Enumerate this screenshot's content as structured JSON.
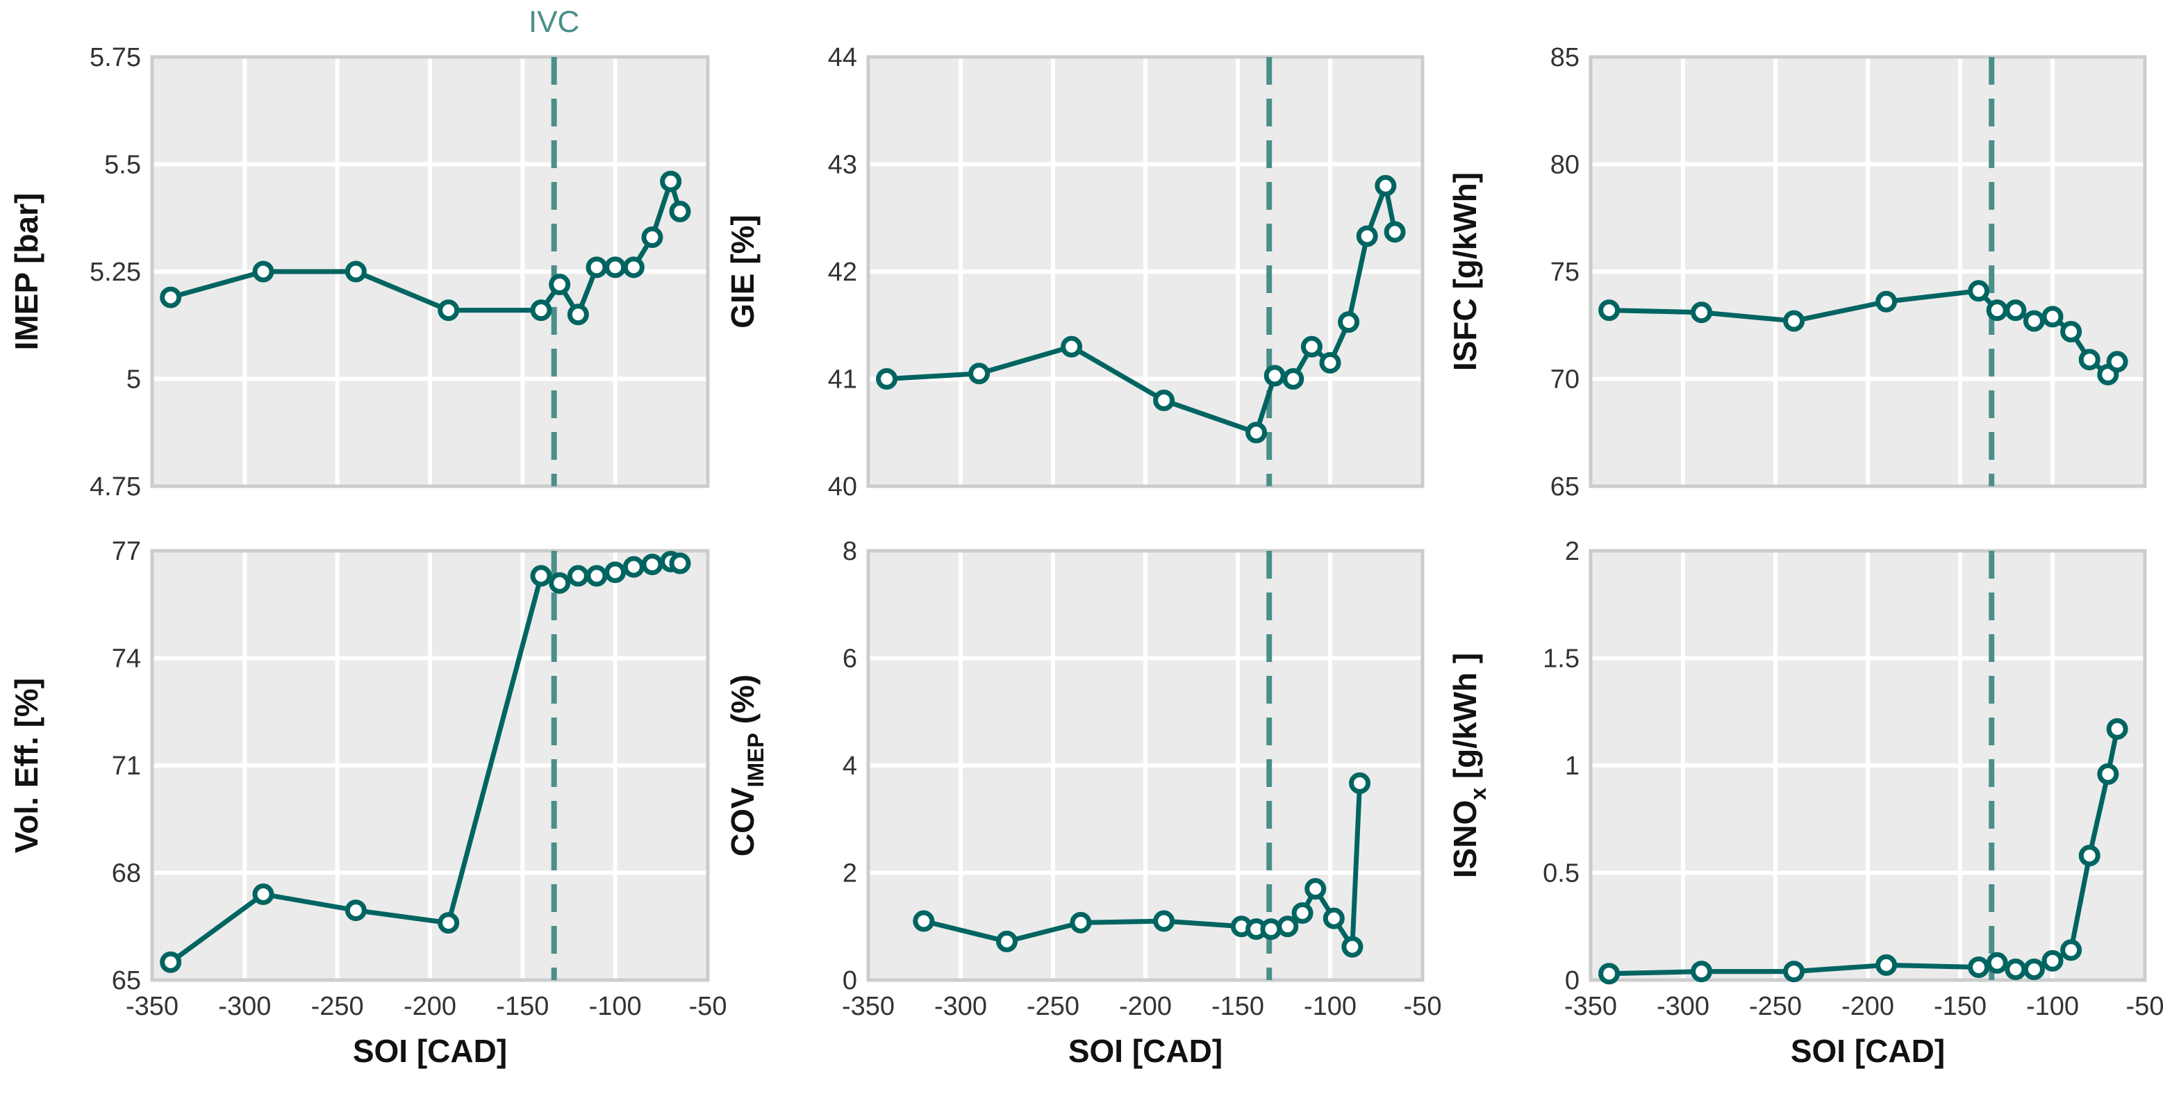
{
  "ivc_label": "IVC",
  "colors": {
    "series": "#006461",
    "ivc_line": "#4a8f8a",
    "panel_bg": "#ebebeb",
    "grid": "#ffffff",
    "frame": "#cccccc"
  },
  "chart_data": [
    {
      "type": "line",
      "ylabel": "IMEP [bar]",
      "xlabel": "",
      "xlim": [
        -350,
        -50
      ],
      "ylim": [
        4.75,
        5.75
      ],
      "xticks": [],
      "yticks": [
        "4.75",
        "5",
        "5.25",
        "5.5",
        "5.75"
      ],
      "ivc_x": -133,
      "series": [
        {
          "name": "IMEP",
          "x": [
            -340,
            -290,
            -240,
            -190,
            -140,
            -130,
            -120,
            -110,
            -100,
            -90,
            -80,
            -70,
            -65
          ],
          "y": [
            5.19,
            5.25,
            5.25,
            5.16,
            5.16,
            5.22,
            5.15,
            5.26,
            5.26,
            5.26,
            5.33,
            5.46,
            5.39
          ]
        }
      ]
    },
    {
      "type": "line",
      "ylabel": "GIE [%]",
      "xlabel": "",
      "xlim": [
        -350,
        -50
      ],
      "ylim": [
        40,
        44
      ],
      "xticks": [],
      "yticks": [
        "40",
        "41",
        "42",
        "43",
        "44"
      ],
      "ivc_x": -133,
      "series": [
        {
          "name": "GIE",
          "x": [
            -340,
            -290,
            -240,
            -190,
            -140,
            -130,
            -120,
            -110,
            -100,
            -90,
            -80,
            -70,
            -65
          ],
          "y": [
            41.0,
            41.05,
            41.3,
            40.8,
            40.5,
            41.03,
            41.0,
            41.3,
            41.15,
            41.53,
            42.33,
            42.8,
            42.37
          ]
        }
      ]
    },
    {
      "type": "line",
      "ylabel": "ISFC [g/kWh]",
      "xlabel": "",
      "xlim": [
        -350,
        -50
      ],
      "ylim": [
        65,
        85
      ],
      "xticks": [],
      "yticks": [
        "65",
        "70",
        "75",
        "80",
        "85"
      ],
      "ivc_x": -133,
      "series": [
        {
          "name": "ISFC",
          "x": [
            -340,
            -290,
            -240,
            -190,
            -140,
            -130,
            -120,
            -110,
            -100,
            -90,
            -80,
            -70,
            -65
          ],
          "y": [
            73.2,
            73.1,
            72.7,
            73.6,
            74.1,
            73.2,
            73.2,
            72.7,
            72.9,
            72.2,
            70.9,
            70.2,
            70.8
          ]
        }
      ]
    },
    {
      "type": "line",
      "ylabel": "Vol. Eff. [%]",
      "xlabel": "SOI [CAD]",
      "xlim": [
        -350,
        -50
      ],
      "ylim": [
        65,
        77
      ],
      "xticks": [
        "-350",
        "-300",
        "-250",
        "-200",
        "-150",
        "-100",
        "-50"
      ],
      "yticks": [
        "65",
        "68",
        "71",
        "74",
        "77"
      ],
      "ivc_x": -133,
      "series": [
        {
          "name": "Vol. Eff.",
          "x": [
            -340,
            -290,
            -240,
            -190,
            -140,
            -130,
            -120,
            -110,
            -100,
            -90,
            -80,
            -70,
            -65
          ],
          "y": [
            65.5,
            67.4,
            66.95,
            66.6,
            76.3,
            76.1,
            76.3,
            76.3,
            76.4,
            76.55,
            76.62,
            76.7,
            76.65
          ]
        }
      ]
    },
    {
      "type": "line",
      "ylabel": "COV",
      "ylabel_sub": "IMEP",
      "ylabel_tail": " (%)",
      "xlabel": "SOI [CAD]",
      "xlim": [
        -350,
        -50
      ],
      "ylim": [
        0,
        8
      ],
      "xticks": [
        "-350",
        "-300",
        "-250",
        "-200",
        "-150",
        "-100",
        "-50"
      ],
      "yticks": [
        "0",
        "2",
        "4",
        "6",
        "8"
      ],
      "ivc_x": -133,
      "series": [
        {
          "name": "COV_IMEP",
          "x": [
            -320,
            -275,
            -235,
            -190,
            -148,
            -140,
            -132,
            -123,
            -115,
            -108,
            -98,
            -88,
            -84
          ],
          "y": [
            1.1,
            0.72,
            1.07,
            1.1,
            1.0,
            0.95,
            0.95,
            1.0,
            1.25,
            1.7,
            1.15,
            0.62,
            3.67
          ]
        }
      ]
    },
    {
      "type": "line",
      "ylabel": "ISNO",
      "ylabel_sub": "x",
      "ylabel_tail": " [g/kWh ]",
      "xlabel": "SOI [CAD]",
      "xlim": [
        -350,
        -50
      ],
      "ylim": [
        0,
        2
      ],
      "xticks": [
        "-350",
        "-300",
        "-250",
        "-200",
        "-150",
        "-100",
        "-50"
      ],
      "yticks": [
        "0",
        "0.5",
        "1",
        "1.5",
        "2"
      ],
      "ivc_x": -133,
      "series": [
        {
          "name": "ISNOx",
          "x": [
            -340,
            -290,
            -240,
            -190,
            -140,
            -130,
            -120,
            -110,
            -100,
            -90,
            -80,
            -70,
            -65
          ],
          "y": [
            0.03,
            0.04,
            0.04,
            0.07,
            0.06,
            0.08,
            0.05,
            0.05,
            0.09,
            0.14,
            0.58,
            0.96,
            1.17
          ]
        }
      ]
    }
  ]
}
